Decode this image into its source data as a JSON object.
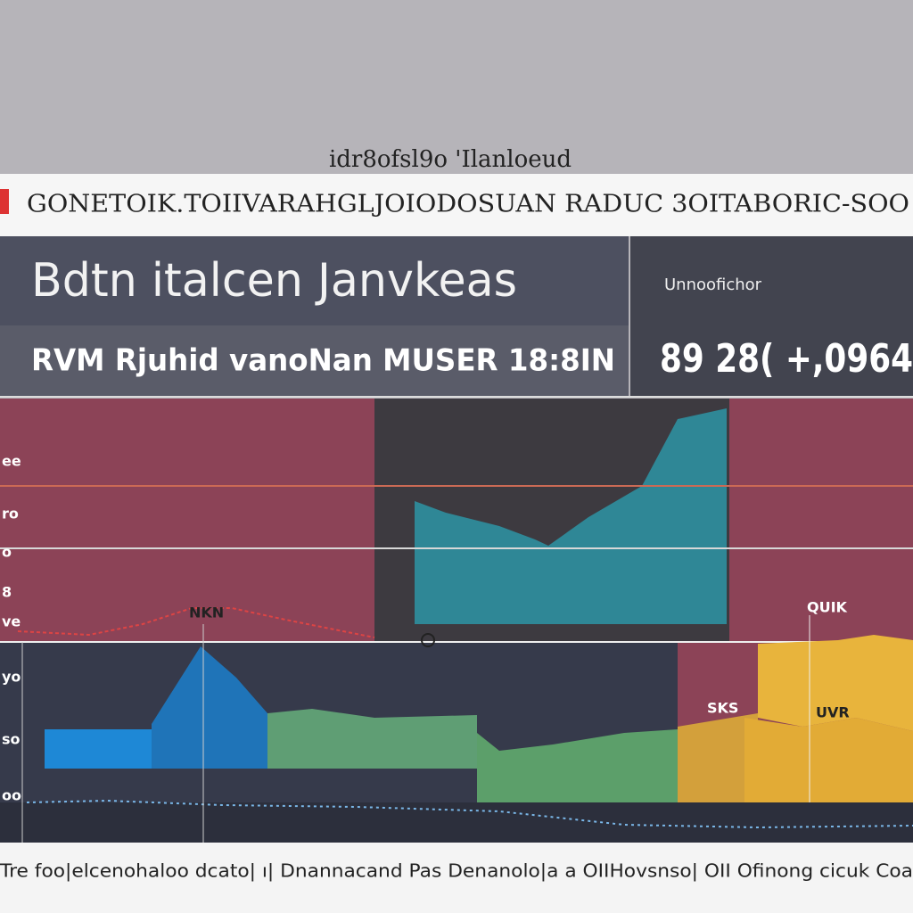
{
  "header": {
    "caption": "idr8ofsl9o 'Ilanloeud",
    "banner": "GONETOIK.TOIIVARAHGLJOIODOSUAN RADUC 3OITABORIC-SOO"
  },
  "panel": {
    "title": "Bdtn italcen Janvkeas",
    "subtitle": "RVM Rjuhid vanoNan MUSER 18:8IN",
    "stat_label": "Unnoofichor",
    "stat_value": "89 28( +,0964"
  },
  "chart": {
    "axis_labels": [
      "ee",
      "ro",
      "o",
      "8",
      "ve",
      "yo",
      "so",
      "oo"
    ],
    "annotations": [
      "NKN",
      "QUIK",
      "SKS",
      "UVR"
    ],
    "footer": "Tre foo|elcenohaloo dcato| ı| Dnannacand Pas Denanolo|a a OIIHovsnso| OII Ofinong cicuk Coa"
  }
}
